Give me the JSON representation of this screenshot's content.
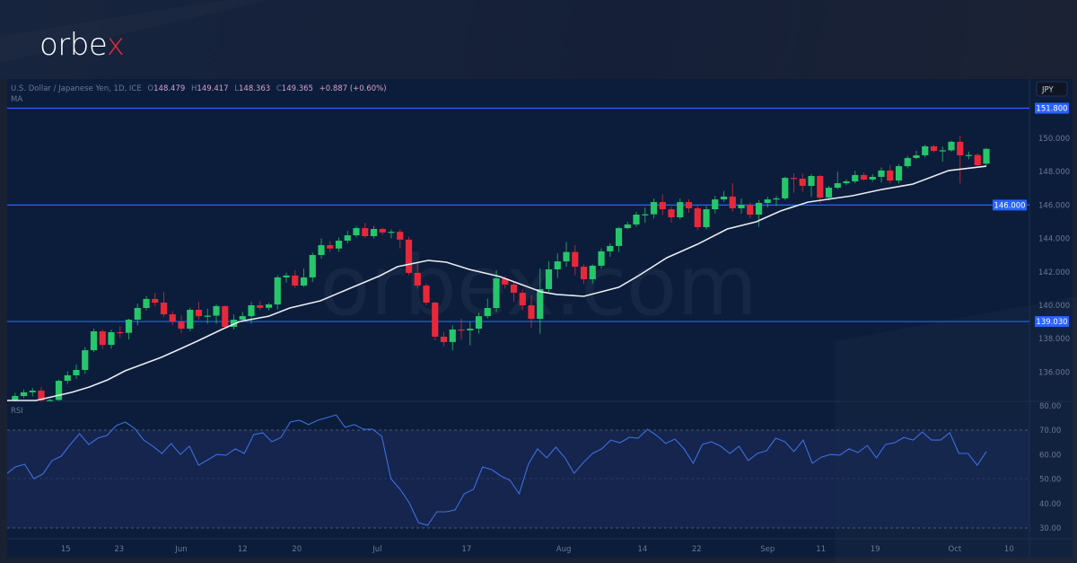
{
  "brand": {
    "logo_main": "orbe",
    "logo_accent": "x",
    "watermark": "orbex.com",
    "accent_color": "#e8283a"
  },
  "legend": {
    "symbol": "U.S. Dollar / Japanese Yen, 1D, ICE",
    "o_label": "O",
    "o": "148.479",
    "h_label": "H",
    "h": "149.417",
    "l_label": "L",
    "l": "148.363",
    "c_label": "C",
    "c": "149.365",
    "change": "+0.887 (+0.60%)",
    "ma_label": "MA",
    "rsi_label": "RSI"
  },
  "currency_button": "JPY",
  "chart_data": {
    "type": "candlestick",
    "title": "U.S. Dollar / Japanese Yen, 1D, ICE",
    "colors": {
      "up": "#26c66b",
      "down": "#e8283a",
      "ma": "#e9ecf2",
      "rsi": "#3d6ee0",
      "level": "#2962ff"
    },
    "ylim": [
      134.9,
      152.4
    ],
    "price_ticks": [
      "150.000",
      "148.000",
      "146.000",
      "144.000",
      "142.000",
      "140.000",
      "138.000",
      "136.000"
    ],
    "price_tick_values": [
      150,
      148,
      146,
      144,
      142,
      140,
      138,
      136
    ],
    "levels": [
      {
        "value": 151.8,
        "label": "151.800"
      },
      {
        "value": 146.0,
        "label": "146.000"
      },
      {
        "value": 139.03,
        "label": "139.030"
      }
    ],
    "x_labels": [
      {
        "label": "15",
        "bar": 6.8
      },
      {
        "label": "23",
        "bar": 12.9
      },
      {
        "label": "Jun",
        "bar": 20
      },
      {
        "label": "12",
        "bar": 27
      },
      {
        "label": "20",
        "bar": 33.2
      },
      {
        "label": "Jul",
        "bar": 42.4
      },
      {
        "label": "17",
        "bar": 52.6
      },
      {
        "label": "Aug",
        "bar": 63.7
      },
      {
        "label": "14",
        "bar": 72.7
      },
      {
        "label": "22",
        "bar": 78.9
      },
      {
        "label": "Sep",
        "bar": 87
      },
      {
        "label": "11",
        "bar": 93.1
      },
      {
        "label": "19",
        "bar": 99.3
      },
      {
        "label": "Oct",
        "bar": 108.4
      },
      {
        "label": "10",
        "bar": 114.6
      }
    ],
    "ohlc": [
      [
        134.35,
        134.45,
        134.25,
        134.3
      ],
      [
        134.3,
        134.75,
        134.25,
        134.57
      ],
      [
        134.57,
        134.95,
        134.45,
        134.79
      ],
      [
        134.79,
        135.05,
        134.55,
        134.89
      ],
      [
        134.89,
        135.1,
        134.25,
        134.3
      ],
      [
        134.3,
        134.4,
        134.2,
        134.33
      ],
      [
        134.33,
        135.55,
        134.28,
        135.48
      ],
      [
        135.48,
        136.05,
        135.3,
        135.81
      ],
      [
        135.81,
        136.45,
        135.6,
        136.13
      ],
      [
        136.13,
        137.5,
        135.9,
        137.31
      ],
      [
        137.31,
        138.6,
        137.2,
        138.44
      ],
      [
        138.44,
        138.55,
        137.4,
        137.63
      ],
      [
        137.63,
        138.55,
        137.4,
        138.39
      ],
      [
        138.39,
        138.75,
        138.05,
        138.35
      ],
      [
        138.35,
        139.2,
        137.95,
        139.14
      ],
      [
        139.14,
        140.1,
        138.8,
        139.84
      ],
      [
        139.84,
        140.55,
        139.7,
        140.38
      ],
      [
        140.38,
        140.75,
        139.95,
        140.16
      ],
      [
        140.16,
        140.8,
        139.3,
        139.46
      ],
      [
        139.46,
        139.65,
        138.8,
        139.03
      ],
      [
        139.03,
        139.4,
        138.35,
        138.6
      ],
      [
        138.6,
        139.85,
        138.45,
        139.73
      ],
      [
        139.73,
        140.2,
        139.15,
        139.35
      ],
      [
        139.35,
        139.8,
        138.9,
        139.38
      ],
      [
        139.38,
        140.05,
        138.9,
        139.95
      ],
      [
        139.95,
        140.0,
        138.65,
        138.71
      ],
      [
        138.71,
        139.45,
        138.55,
        139.14
      ],
      [
        139.14,
        139.6,
        139.0,
        139.35
      ],
      [
        139.35,
        140.2,
        138.9,
        140.0
      ],
      [
        140.0,
        140.25,
        139.7,
        139.85
      ],
      [
        139.85,
        140.15,
        139.7,
        140.05
      ],
      [
        140.05,
        141.8,
        139.75,
        141.67
      ],
      [
        141.67,
        141.95,
        141.35,
        141.78
      ],
      [
        141.78,
        142.1,
        141.05,
        141.18
      ],
      [
        141.18,
        142.2,
        141.1,
        141.67
      ],
      [
        141.67,
        143.15,
        141.4,
        143.01
      ],
      [
        143.01,
        144.0,
        142.8,
        143.6
      ],
      [
        143.6,
        143.85,
        143.2,
        143.4
      ],
      [
        143.4,
        144.05,
        143.2,
        143.87
      ],
      [
        143.87,
        144.45,
        143.7,
        144.19
      ],
      [
        144.19,
        144.75,
        144.05,
        144.62
      ],
      [
        144.62,
        144.95,
        144.05,
        144.14
      ],
      [
        144.14,
        144.75,
        144.0,
        144.57
      ],
      [
        144.57,
        144.65,
        144.2,
        144.36
      ],
      [
        144.36,
        144.55,
        144.0,
        144.4
      ],
      [
        144.4,
        144.55,
        143.4,
        143.93
      ],
      [
        143.93,
        144.1,
        141.8,
        141.94
      ],
      [
        141.94,
        142.55,
        141.0,
        141.18
      ],
      [
        141.18,
        141.3,
        140.0,
        140.16
      ],
      [
        140.16,
        140.2,
        137.9,
        138.12
      ],
      [
        138.12,
        138.4,
        137.55,
        137.8
      ],
      [
        137.8,
        138.8,
        137.3,
        138.55
      ],
      [
        138.55,
        139.2,
        137.95,
        138.5
      ],
      [
        138.5,
        139.0,
        137.6,
        138.6
      ],
      [
        138.6,
        139.55,
        138.3,
        139.35
      ],
      [
        139.35,
        140.4,
        139.2,
        139.84
      ],
      [
        139.84,
        142.1,
        139.6,
        141.61
      ],
      [
        141.61,
        141.75,
        141.0,
        141.24
      ],
      [
        141.24,
        141.4,
        140.2,
        140.75
      ],
      [
        140.75,
        140.95,
        139.7,
        140.0
      ],
      [
        140.0,
        140.6,
        138.65,
        139.19
      ],
      [
        139.19,
        142.2,
        138.3,
        140.97
      ],
      [
        140.97,
        142.65,
        140.8,
        142.15
      ],
      [
        142.15,
        143.1,
        141.65,
        142.63
      ],
      [
        142.63,
        143.8,
        142.3,
        143.19
      ],
      [
        143.19,
        143.6,
        141.8,
        142.31
      ],
      [
        142.31,
        142.45,
        141.3,
        141.56
      ],
      [
        141.56,
        142.45,
        141.3,
        142.37
      ],
      [
        142.37,
        143.4,
        142.2,
        143.23
      ],
      [
        143.23,
        143.7,
        142.9,
        143.55
      ],
      [
        143.55,
        144.7,
        143.2,
        144.62
      ],
      [
        144.62,
        145.0,
        144.55,
        144.84
      ],
      [
        144.84,
        145.6,
        144.7,
        145.43
      ],
      [
        145.43,
        145.85,
        144.95,
        145.45
      ],
      [
        145.45,
        146.4,
        145.2,
        146.18
      ],
      [
        146.18,
        146.65,
        145.4,
        145.75
      ],
      [
        145.75,
        145.9,
        144.95,
        145.27
      ],
      [
        145.27,
        146.4,
        145.15,
        146.18
      ],
      [
        146.18,
        146.35,
        145.55,
        145.81
      ],
      [
        145.81,
        146.0,
        144.5,
        144.68
      ],
      [
        144.68,
        145.95,
        144.55,
        145.75
      ],
      [
        145.75,
        146.55,
        145.5,
        146.34
      ],
      [
        146.34,
        146.85,
        146.2,
        146.51
      ],
      [
        146.51,
        147.31,
        145.6,
        145.81
      ],
      [
        145.81,
        146.4,
        145.5,
        146.02
      ],
      [
        146.02,
        146.15,
        145.2,
        145.43
      ],
      [
        145.43,
        146.3,
        144.7,
        146.13
      ],
      [
        146.13,
        146.5,
        145.85,
        146.34
      ],
      [
        146.34,
        146.55,
        145.95,
        146.4
      ],
      [
        146.4,
        147.7,
        146.3,
        147.63
      ],
      [
        147.63,
        147.9,
        146.75,
        147.58
      ],
      [
        147.58,
        147.9,
        146.8,
        147.15
      ],
      [
        147.15,
        147.85,
        146.5,
        147.74
      ],
      [
        147.74,
        147.8,
        146.1,
        146.45
      ],
      [
        146.45,
        147.15,
        146.3,
        147.04
      ],
      [
        147.04,
        148.0,
        146.95,
        147.31
      ],
      [
        147.31,
        147.55,
        147.2,
        147.42
      ],
      [
        147.42,
        148.05,
        147.3,
        147.8
      ],
      [
        147.8,
        147.95,
        147.45,
        147.53
      ],
      [
        147.53,
        147.85,
        147.4,
        147.69
      ],
      [
        147.69,
        148.25,
        147.35,
        148.07
      ],
      [
        148.07,
        148.4,
        147.3,
        147.47
      ],
      [
        147.47,
        148.45,
        147.3,
        148.33
      ],
      [
        148.33,
        148.95,
        148.2,
        148.82
      ],
      [
        148.82,
        149.25,
        148.75,
        148.98
      ],
      [
        148.98,
        149.6,
        148.85,
        149.52
      ],
      [
        149.52,
        149.6,
        149.15,
        149.25
      ],
      [
        149.25,
        149.5,
        148.6,
        149.28
      ],
      [
        149.28,
        149.85,
        149.2,
        149.79
      ],
      [
        149.79,
        150.16,
        147.3,
        148.98
      ],
      [
        148.98,
        149.2,
        148.75,
        149.0
      ],
      [
        149.0,
        149.1,
        148.3,
        148.39
      ],
      [
        148.479,
        149.417,
        148.363,
        149.365
      ]
    ],
    "ma": [
      [
        0,
        134.3
      ],
      [
        3.4,
        134.3
      ],
      [
        7.5,
        134.79
      ],
      [
        9.5,
        135.11
      ],
      [
        11.6,
        135.54
      ],
      [
        13.6,
        136.08
      ],
      [
        17.7,
        136.88
      ],
      [
        19.8,
        137.37
      ],
      [
        21.8,
        137.85
      ],
      [
        24.6,
        138.55
      ],
      [
        26.7,
        139.03
      ],
      [
        30,
        139.35
      ],
      [
        32.4,
        139.84
      ],
      [
        35.9,
        140.27
      ],
      [
        40,
        141.18
      ],
      [
        42.7,
        141.77
      ],
      [
        44.7,
        142.31
      ],
      [
        48.2,
        142.69
      ],
      [
        50.3,
        142.58
      ],
      [
        52.9,
        142.15
      ],
      [
        56.4,
        141.72
      ],
      [
        61.1,
        140.81
      ],
      [
        62.9,
        140.65
      ],
      [
        66,
        140.54
      ],
      [
        70,
        141.08
      ],
      [
        72.1,
        141.72
      ],
      [
        75.5,
        142.85
      ],
      [
        79,
        143.66
      ],
      [
        82.4,
        144.57
      ],
      [
        85.7,
        145.0
      ],
      [
        88.5,
        145.65
      ],
      [
        91.6,
        146.18
      ],
      [
        96.7,
        146.56
      ],
      [
        100.1,
        146.94
      ],
      [
        103.6,
        147.26
      ],
      [
        107.7,
        148.07
      ],
      [
        112,
        148.33
      ]
    ],
    "rsi": {
      "ticks": [
        "80.00",
        "70.00",
        "60.00",
        "50.00",
        "40.00",
        "30.00"
      ],
      "tick_values": [
        80,
        70,
        60,
        50,
        40,
        30
      ],
      "upper": 70,
      "lower": 30,
      "values": [
        52.1,
        55.0,
        56.1,
        50.2,
        52.1,
        57.6,
        59.4,
        64.2,
        68.6,
        64.2,
        66.8,
        67.9,
        71.9,
        73.4,
        70.8,
        66.0,
        63.5,
        60.5,
        64.6,
        60.1,
        63.5,
        55.7,
        57.9,
        60.1,
        59.8,
        62.4,
        60.5,
        68.2,
        69.0,
        65.3,
        67.1,
        73.4,
        74.1,
        72.3,
        74.1,
        75.2,
        76.3,
        71.2,
        72.3,
        70.4,
        70.4,
        67.5,
        50.2,
        45.8,
        40.3,
        32.2,
        31.1,
        36.6,
        36.6,
        37.4,
        44.0,
        45.8,
        55.0,
        53.9,
        51.3,
        49.5,
        44.0,
        56.1,
        62.4,
        58.7,
        63.1,
        58.7,
        52.4,
        56.8,
        60.5,
        62.4,
        66.0,
        64.9,
        67.1,
        66.8,
        70.4,
        67.9,
        64.6,
        66.4,
        62.4,
        56.5,
        64.2,
        65.3,
        63.5,
        60.5,
        63.5,
        57.6,
        60.5,
        61.6,
        66.8,
        65.3,
        61.3,
        66.0,
        56.5,
        59.0,
        60.1,
        59.8,
        62.4,
        60.9,
        63.8,
        58.7,
        64.2,
        64.9,
        67.1,
        66.0,
        69.3,
        66.0,
        66.0,
        69.0,
        60.5,
        60.5,
        55.7,
        61.3
      ]
    }
  }
}
